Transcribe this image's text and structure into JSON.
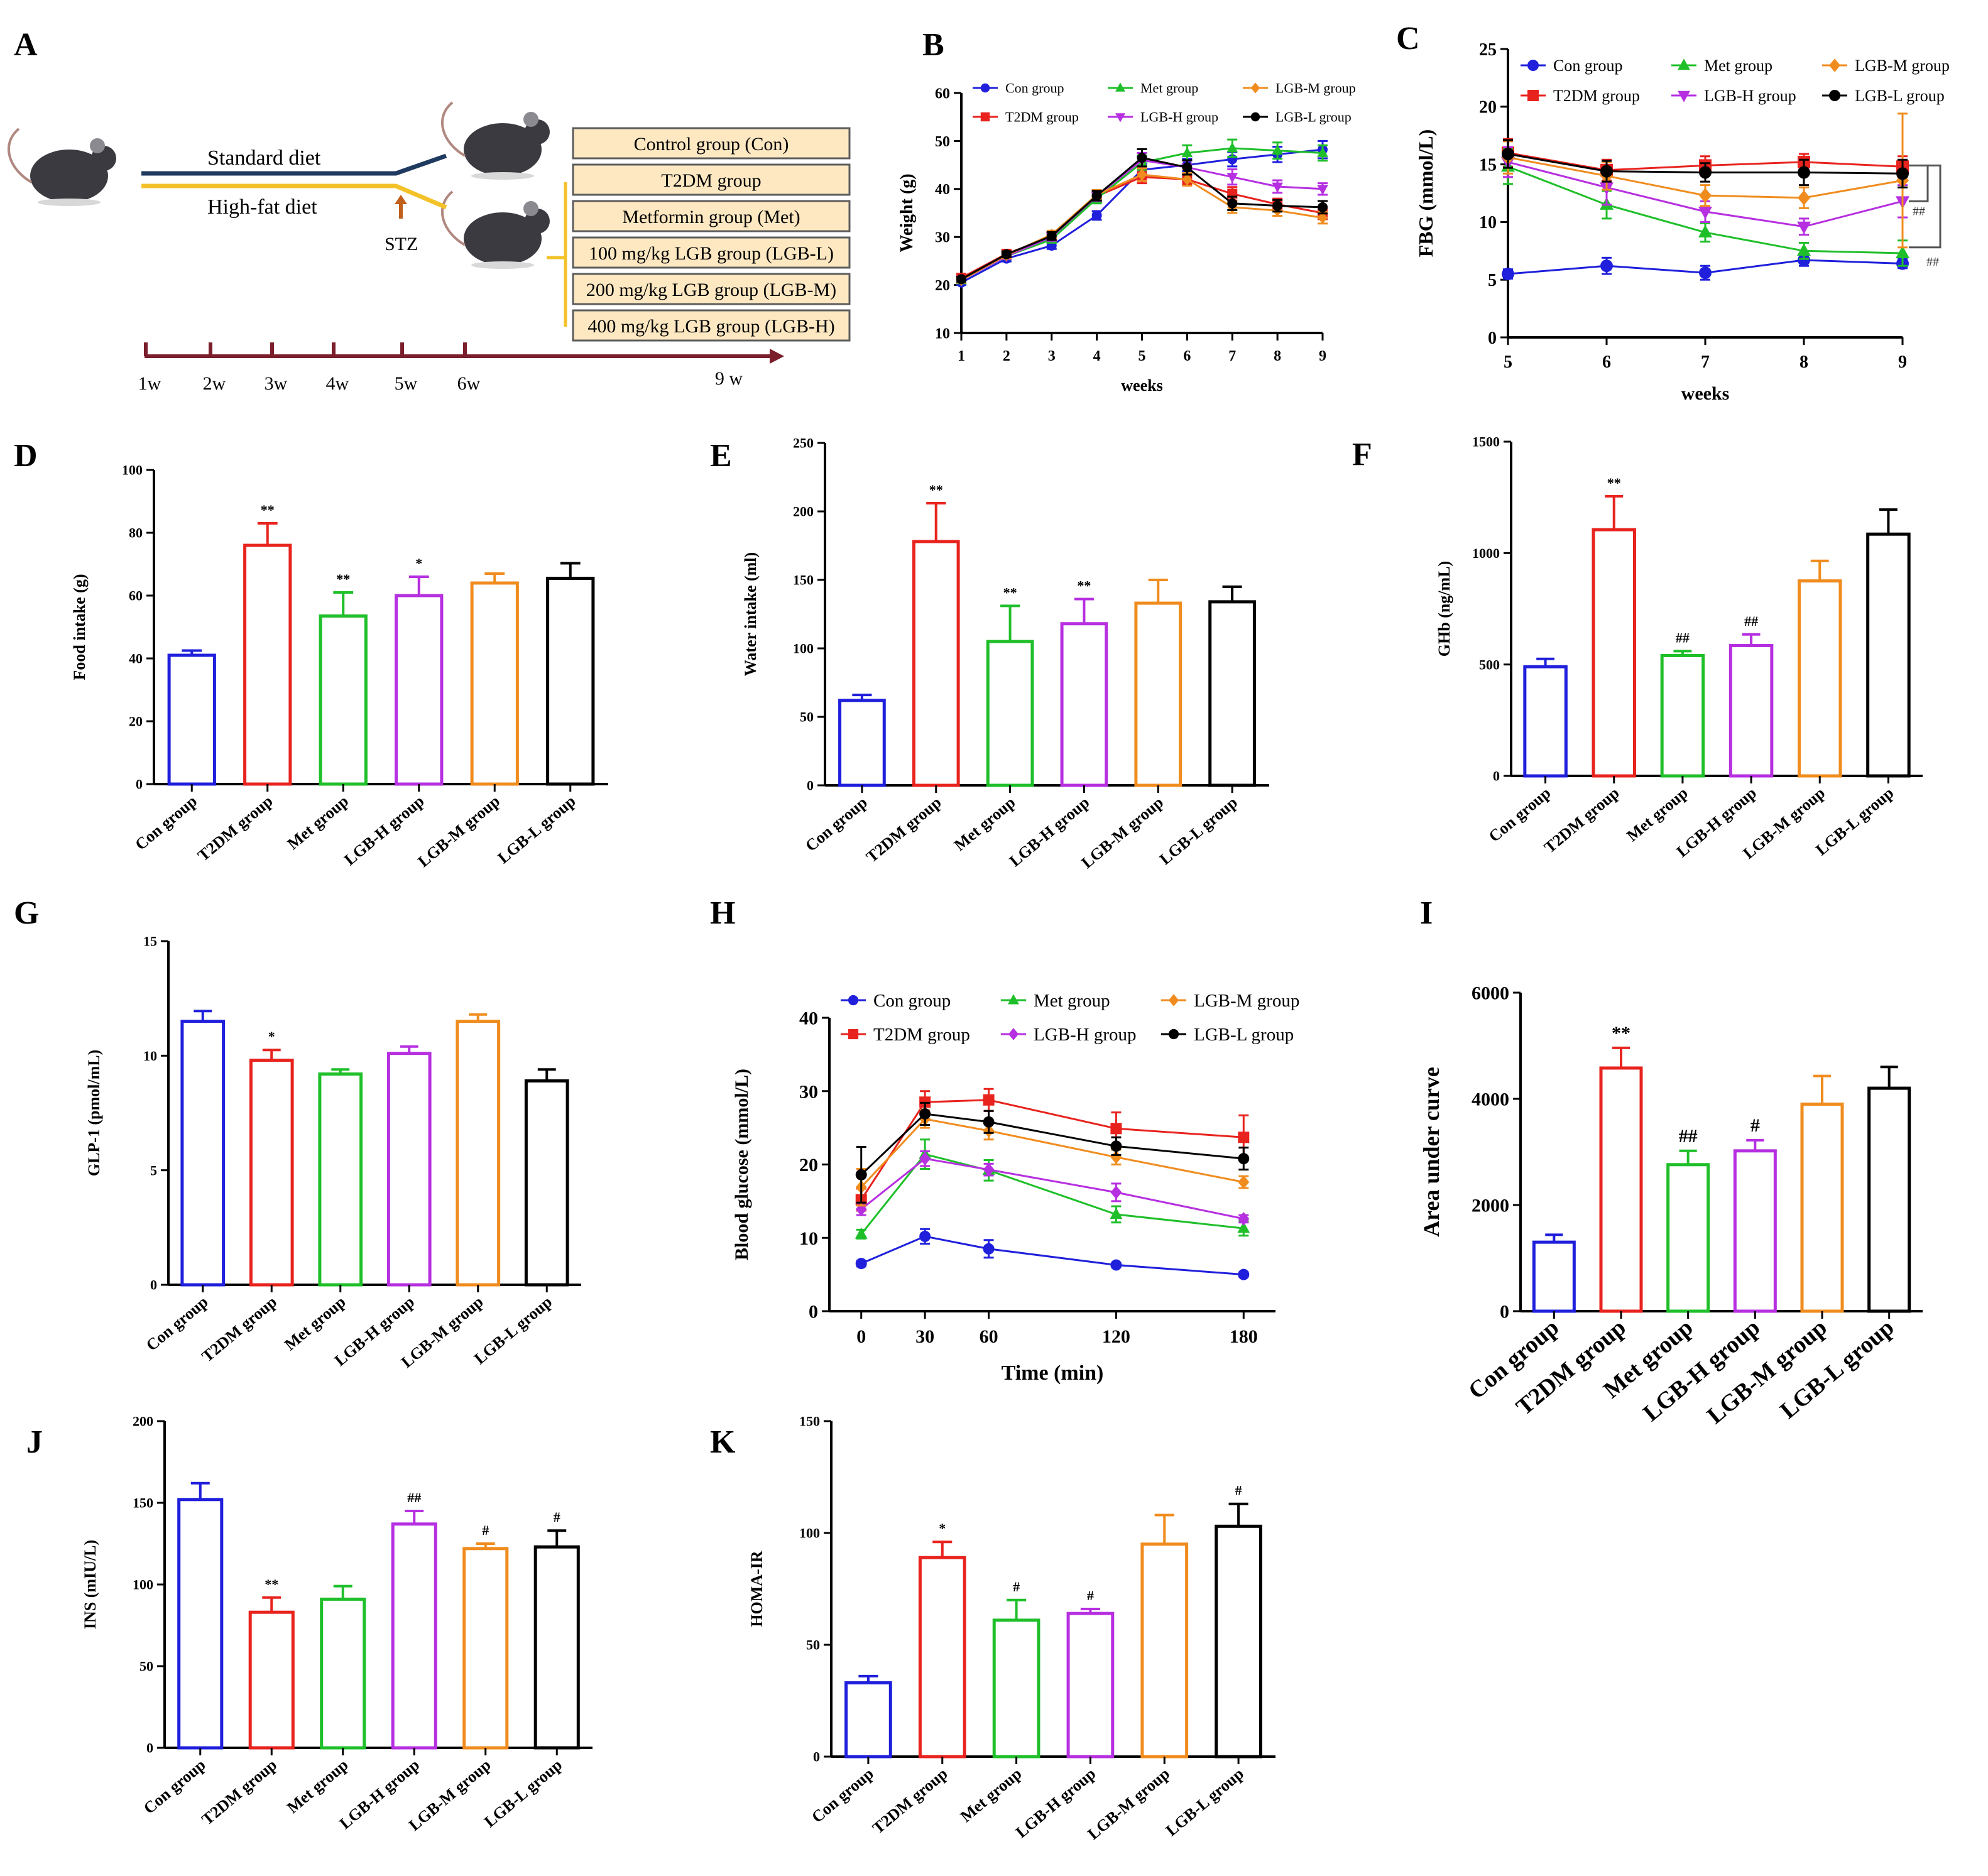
{
  "panel_letters": [
    "A",
    "B",
    "C",
    "D",
    "E",
    "F",
    "G",
    "H",
    "I",
    "J",
    "K"
  ],
  "scheme": {
    "standard_diet": "Standard diet",
    "high_fat_diet": "High-fat diet",
    "stz": "STZ",
    "groups": [
      "Control group (Con)",
      "T2DM group",
      "Metformin group (Met)",
      "100 mg/kg LGB group (LGB-L)",
      "200 mg/kg LGB group (LGB-M)",
      "400 mg/kg LGB group (LGB-H)"
    ],
    "timeline": [
      "1w",
      "2w",
      "3w",
      "4w",
      "5w",
      "6w",
      "9 w"
    ]
  },
  "colors": {
    "con": "#1f1fdc",
    "t2dm": "#e8231e",
    "met": "#1fbf2a",
    "lgbh": "#b62fe0",
    "lgbm": "#f08c1e",
    "lgbl": "#000000",
    "box_fill": "#fde8c2",
    "box_stroke": "#5c5c5c",
    "timeline": "#7a1f2b",
    "high_fat": "#f2c228",
    "standard": "#1f3a5f"
  },
  "chart_data": [
    {
      "id": "B",
      "type": "line",
      "xlabel": "weeks",
      "ylabel": "Weight (g)",
      "x": [
        1,
        2,
        3,
        4,
        5,
        6,
        7,
        8,
        9
      ],
      "xlim": [
        1,
        9
      ],
      "ylim": [
        10,
        60
      ],
      "yticks": [
        10,
        20,
        30,
        40,
        50,
        60
      ],
      "xticks": [
        1,
        2,
        3,
        4,
        5,
        6,
        7,
        8,
        9
      ],
      "series": [
        {
          "name": "Con group",
          "key": "con",
          "marker": "circle",
          "values": [
            20.5,
            25.5,
            28.2,
            34.5,
            44,
            45,
            46.2,
            47.2,
            48.2
          ],
          "err": [
            0.5,
            0.6,
            0.7,
            0.9,
            1.2,
            1.3,
            1.5,
            1.6,
            1.8
          ]
        },
        {
          "name": "T2DM group",
          "key": "t2dm",
          "marker": "square",
          "values": [
            21.5,
            26.5,
            30,
            38.5,
            42.5,
            42,
            39,
            36.8,
            35
          ],
          "err": [
            0.6,
            0.6,
            0.8,
            1,
            1.3,
            1.2,
            1.4,
            1.2,
            1.3
          ]
        },
        {
          "name": "Met group",
          "key": "met",
          "marker": "triangle",
          "values": [
            21,
            26,
            29.5,
            38,
            45.5,
            47.5,
            48.5,
            48,
            47.5
          ],
          "err": [
            0.5,
            0.6,
            0.7,
            1,
            1.5,
            1.6,
            1.8,
            1.7,
            1.6
          ]
        },
        {
          "name": "LGB-H group",
          "key": "lgbh",
          "marker": "triangle-down",
          "values": [
            21,
            26,
            30,
            38.5,
            46,
            44.5,
            42.5,
            40.5,
            40
          ],
          "err": [
            0.5,
            0.6,
            0.8,
            1,
            1.5,
            1.4,
            1.6,
            1.3,
            1.2
          ]
        },
        {
          "name": "LGB-M group",
          "key": "lgbm",
          "marker": "diamond",
          "values": [
            21,
            26.2,
            30.5,
            38.8,
            43,
            42,
            36.2,
            35.5,
            34
          ],
          "err": [
            0.5,
            0.6,
            0.8,
            1,
            1.3,
            1.3,
            1.2,
            1.1,
            1.2
          ]
        },
        {
          "name": "LGB-L group",
          "key": "lgbl",
          "marker": "circle",
          "values": [
            21.2,
            26.4,
            30.2,
            38.6,
            46.5,
            44.5,
            37,
            36.5,
            36.2
          ],
          "err": [
            0.5,
            0.6,
            0.8,
            1,
            1.8,
            1.5,
            1.4,
            1.2,
            1.3
          ]
        }
      ]
    },
    {
      "id": "C",
      "type": "line",
      "xlabel": "weeks",
      "ylabel": "FBG (mmol/L)",
      "x": [
        5,
        6,
        7,
        8,
        9
      ],
      "xlim": [
        5,
        9
      ],
      "ylim": [
        0,
        25
      ],
      "yticks": [
        0,
        5,
        10,
        15,
        20,
        25
      ],
      "xticks": [
        5,
        6,
        7,
        8,
        9
      ],
      "annotations": [
        "##",
        "##"
      ],
      "series": [
        {
          "name": "Con group",
          "key": "con",
          "marker": "circle",
          "values": [
            5.5,
            6.2,
            5.6,
            6.7,
            6.4
          ],
          "err": [
            0.4,
            0.7,
            0.6,
            0.5,
            0.4
          ]
        },
        {
          "name": "T2DM group",
          "key": "t2dm",
          "marker": "square",
          "values": [
            16,
            14.5,
            14.9,
            15.2,
            14.8
          ],
          "err": [
            1.2,
            0.9,
            0.8,
            0.7,
            0.9
          ]
        },
        {
          "name": "Met group",
          "key": "met",
          "marker": "triangle",
          "values": [
            14.8,
            11.5,
            9.1,
            7.5,
            7.3
          ],
          "err": [
            1.5,
            1.2,
            0.8,
            0.7,
            1.1
          ]
        },
        {
          "name": "LGB-H group",
          "key": "lgbh",
          "marker": "triangle-down",
          "values": [
            15.2,
            13,
            10.9,
            9.6,
            11.8
          ],
          "err": [
            1.3,
            1.5,
            0.9,
            0.7,
            1.4
          ]
        },
        {
          "name": "LGB-M group",
          "key": "lgbm",
          "marker": "diamond",
          "values": [
            15.6,
            14,
            12.3,
            12.1,
            13.6
          ],
          "err": [
            1.4,
            1.2,
            0.9,
            0.9,
            5.8
          ]
        },
        {
          "name": "LGB-L group",
          "key": "lgbl",
          "marker": "circle",
          "values": [
            15.9,
            14.4,
            14.3,
            14.3,
            14.2
          ],
          "err": [
            1.2,
            0.9,
            0.8,
            1.1,
            1.2
          ]
        }
      ]
    },
    {
      "id": "D",
      "type": "bar",
      "ylabel": "Food intake (g)",
      "ylim": [
        0,
        100
      ],
      "yticks": [
        0,
        20,
        40,
        60,
        80,
        100
      ],
      "categories": [
        "Con group",
        "T2DM group",
        "Met group",
        "LGB-H group",
        "LGB-M group",
        "LGB-L group"
      ],
      "values": [
        41,
        76,
        53.5,
        60,
        64,
        65.5
      ],
      "err": [
        1.5,
        7,
        7.5,
        6,
        3,
        4.8
      ],
      "labels": [
        "",
        "**",
        "**",
        "*",
        "",
        ""
      ]
    },
    {
      "id": "E",
      "type": "bar",
      "ylabel": "Water intake (ml)",
      "ylim": [
        0,
        250
      ],
      "yticks": [
        0,
        50,
        100,
        150,
        200,
        250
      ],
      "categories": [
        "Con group",
        "T2DM group",
        "Met group",
        "LGB-H group",
        "LGB-M group",
        "LGB-L group"
      ],
      "values": [
        62,
        178,
        105,
        118,
        133,
        134
      ],
      "err": [
        4,
        28,
        26,
        18,
        17,
        11
      ],
      "labels": [
        "",
        "**",
        "**",
        "**",
        "",
        ""
      ]
    },
    {
      "id": "F",
      "type": "bar",
      "ylabel": "GHb (ng/mL)",
      "ylim": [
        0,
        1500
      ],
      "yticks": [
        0,
        500,
        1000,
        1500
      ],
      "categories": [
        "Con group",
        "T2DM group",
        "Met group",
        "LGB-H group",
        "LGB-M group",
        "LGB-L group"
      ],
      "values": [
        490,
        1105,
        540,
        585,
        875,
        1085
      ],
      "err": [
        35,
        150,
        20,
        50,
        90,
        110
      ],
      "labels": [
        "",
        "**",
        "##",
        "##",
        "",
        ""
      ]
    },
    {
      "id": "G",
      "type": "bar",
      "ylabel": "GLP-1 (pmol/mL)",
      "ylim": [
        0,
        15
      ],
      "yticks": [
        0,
        5,
        10,
        15
      ],
      "categories": [
        "Con group",
        "T2DM group",
        "Met group",
        "LGB-H group",
        "LGB-M group",
        "LGB-L group"
      ],
      "values": [
        11.5,
        9.8,
        9.2,
        10.1,
        11.5,
        8.9
      ],
      "err": [
        0.45,
        0.45,
        0.2,
        0.3,
        0.3,
        0.5
      ],
      "labels": [
        "",
        "*",
        "",
        "",
        "",
        ""
      ]
    },
    {
      "id": "H",
      "type": "line",
      "xlabel": "Time (min)",
      "ylabel": "Blood glucose (mmol/L)",
      "x": [
        0,
        30,
        60,
        120,
        180
      ],
      "xticks": [
        0,
        30,
        60,
        120,
        180
      ],
      "xlim": [
        -15,
        195
      ],
      "ylim": [
        0,
        40
      ],
      "yticks": [
        0,
        10,
        20,
        30,
        40
      ],
      "series": [
        {
          "name": "Con group",
          "key": "con",
          "marker": "circle",
          "values": [
            6.5,
            10.2,
            8.5,
            6.3,
            5
          ],
          "err": [
            0.4,
            1,
            1.2,
            0.3,
            0.3
          ]
        },
        {
          "name": "T2DM group",
          "key": "t2dm",
          "marker": "square",
          "values": [
            15.2,
            28.5,
            28.8,
            24.9,
            23.7
          ],
          "err": [
            1.5,
            1.5,
            1.5,
            2.2,
            3
          ]
        },
        {
          "name": "Met group",
          "key": "met",
          "marker": "triangle",
          "values": [
            10.5,
            21.4,
            19.2,
            13.2,
            11.3
          ],
          "err": [
            0.6,
            2,
            1.4,
            1.1,
            1
          ]
        },
        {
          "name": "LGB-H group",
          "key": "lgbh",
          "marker": "diamond",
          "values": [
            13.9,
            20.8,
            19.3,
            16.2,
            12.6
          ],
          "err": [
            0.8,
            1,
            0.8,
            1.2,
            0.5
          ]
        },
        {
          "name": "LGB-M group",
          "key": "lgbm",
          "marker": "diamond",
          "values": [
            16.9,
            26.2,
            24.6,
            21,
            17.6
          ],
          "err": [
            2.5,
            1.2,
            1.2,
            1,
            0.8
          ]
        },
        {
          "name": "LGB-L group",
          "key": "lgbl",
          "marker": "circle",
          "values": [
            18.6,
            26.9,
            25.8,
            22.5,
            20.8
          ],
          "err": [
            3.8,
            1.5,
            1.5,
            1.2,
            1.5
          ]
        }
      ]
    },
    {
      "id": "I",
      "type": "bar",
      "ylabel": "Area under curve",
      "ylim": [
        0,
        6000
      ],
      "yticks": [
        0,
        2000,
        4000,
        6000
      ],
      "categories": [
        "Con group",
        "T2DM group",
        "Met group",
        "LGB-H group",
        "LGB-M group",
        "LGB-L group"
      ],
      "values": [
        1300,
        4580,
        2760,
        3020,
        3900,
        4200
      ],
      "err": [
        140,
        380,
        260,
        200,
        530,
        400
      ],
      "labels": [
        "",
        "**",
        "##",
        "#",
        "",
        ""
      ]
    },
    {
      "id": "J",
      "type": "bar",
      "ylabel": "INS (mIU/L)",
      "ylim": [
        0,
        200
      ],
      "yticks": [
        0,
        50,
        100,
        150,
        200
      ],
      "categories": [
        "Con group",
        "T2DM group",
        "Met group",
        "LGB-H group",
        "LGB-M group",
        "LGB-L group"
      ],
      "values": [
        152,
        83,
        91,
        137,
        122,
        123
      ],
      "err": [
        10,
        9,
        8,
        8,
        3,
        10
      ],
      "labels": [
        "",
        "**",
        "",
        "##",
        "#",
        "#"
      ]
    },
    {
      "id": "K",
      "type": "bar",
      "ylabel": "HOMA-IR",
      "ylim": [
        0,
        150
      ],
      "yticks": [
        0,
        50,
        100,
        150
      ],
      "categories": [
        "Con group",
        "T2DM group",
        "Met group",
        "LGB-H group",
        "LGB-M group",
        "LGB-L group"
      ],
      "values": [
        33,
        89,
        61,
        64,
        95,
        103
      ],
      "err": [
        3,
        7,
        9,
        2,
        13,
        10
      ],
      "labels": [
        "",
        "*",
        "#",
        "#",
        "",
        "#"
      ]
    }
  ]
}
